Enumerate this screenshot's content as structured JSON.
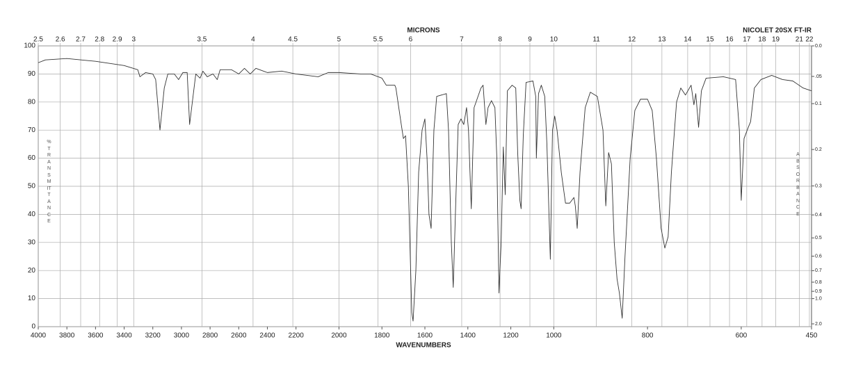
{
  "chart_data": {
    "type": "line",
    "title": "MICRONS",
    "xlabel": "WAVENUMBERS",
    "annotation": "NICOLET 20SX FT-IR",
    "ylabel": "%TRANSMITTANCE",
    "y2label": "ABSORBANCE",
    "color": "#333333",
    "grid": true,
    "xlim": [
      4000,
      450
    ],
    "xscale": "piecewise",
    "xbreaks": [
      4000,
      2200,
      1000,
      450
    ],
    "xticks": [
      4000,
      3800,
      3600,
      3400,
      3200,
      3000,
      2800,
      2600,
      2400,
      2200,
      2000,
      1800,
      1600,
      1400,
      1200,
      1000,
      800,
      600,
      450
    ],
    "x2ticks": [
      2.5,
      2.6,
      2.7,
      2.8,
      2.9,
      3,
      3.5,
      4,
      4.5,
      5,
      5.5,
      6,
      7,
      8,
      9,
      10,
      11,
      12,
      13,
      14,
      15,
      16,
      17,
      18,
      19,
      21,
      22
    ],
    "ylim": [
      0,
      100
    ],
    "yticks": [
      0,
      10,
      20,
      30,
      40,
      50,
      60,
      70,
      80,
      90,
      100
    ],
    "y2ticks": [
      {
        "value": 0.0,
        "label": "0.0"
      },
      {
        "value": 0.05,
        "label": ".05"
      },
      {
        "value": 0.1,
        "label": "0.1"
      },
      {
        "value": 0.2,
        "label": "0.2"
      },
      {
        "value": 0.3,
        "label": "0.3"
      },
      {
        "value": 0.4,
        "label": "0.4"
      },
      {
        "value": 0.5,
        "label": "0.5"
      },
      {
        "value": 0.6,
        "label": "0.6"
      },
      {
        "value": 0.7,
        "label": "0.7"
      },
      {
        "value": 0.8,
        "label": "0.8"
      },
      {
        "value": 0.9,
        "label": "0.9"
      },
      {
        "value": 1.0,
        "label": "1.0"
      },
      {
        "value": 2.0,
        "label": "2.0"
      }
    ],
    "x": [
      4000,
      3950,
      3800,
      3600,
      3400,
      3305,
      3290,
      3250,
      3200,
      3180,
      3150,
      3120,
      3095,
      3050,
      3020,
      2990,
      2960,
      2943,
      2900,
      2870,
      2850,
      2820,
      2780,
      2750,
      2730,
      2650,
      2600,
      2560,
      2520,
      2480,
      2400,
      2300,
      2200,
      2097,
      2050,
      2000,
      1900,
      1852,
      1800,
      1780,
      1740,
      1735,
      1710,
      1700,
      1690,
      1677,
      1661,
      1655,
      1642,
      1629,
      1613,
      1600,
      1590,
      1581,
      1571,
      1558,
      1545,
      1500,
      1490,
      1477,
      1468,
      1458,
      1445,
      1432,
      1419,
      1406,
      1397,
      1384,
      1371,
      1339,
      1329,
      1316,
      1306,
      1290,
      1274,
      1265,
      1255,
      1245,
      1235,
      1226,
      1216,
      1194,
      1177,
      1168,
      1158,
      1152,
      1142,
      1129,
      1097,
      1084,
      1081,
      1071,
      1058,
      1042,
      1032,
      1016,
      1006,
      998,
      993,
      984,
      975,
      966,
      957,
      954,
      950,
      944,
      933,
      922,
      907,
      895,
      889,
      883,
      877,
      871,
      865,
      860,
      854,
      848,
      837,
      827,
      815,
      800,
      790,
      781,
      771,
      763,
      756,
      749,
      738,
      729,
      719,
      707,
      701,
      697,
      691,
      685,
      675,
      638,
      612,
      604,
      600,
      594,
      585,
      580,
      572,
      558,
      535,
      512,
      490,
      468,
      450
    ],
    "values": [
      94,
      95,
      95.5,
      94.5,
      93,
      91.5,
      89,
      90.5,
      90,
      88,
      70,
      85,
      90,
      90,
      88,
      90.5,
      90.5,
      72,
      90,
      88.5,
      91,
      89,
      90,
      88,
      91.5,
      91.5,
      90,
      92,
      90,
      92,
      90.5,
      91,
      90,
      89,
      90.5,
      90.5,
      90,
      90,
      88.5,
      86,
      86,
      85,
      72,
      67,
      68,
      50,
      5,
      2,
      20,
      55,
      70,
      74,
      60,
      40,
      35,
      70,
      82,
      83,
      70,
      30,
      14,
      40,
      72,
      74,
      72,
      78,
      70,
      42,
      78,
      85,
      86,
      72,
      78,
      80.5,
      78,
      60,
      12,
      30,
      64,
      47,
      84,
      86,
      85,
      62,
      45,
      42,
      68,
      87,
      87.5,
      82,
      60,
      83,
      86,
      82,
      65,
      24,
      70,
      75,
      70,
      55,
      44,
      44,
      46,
      43,
      35,
      55,
      78,
      83.5,
      82,
      70,
      43,
      62,
      58,
      30,
      17,
      12,
      3,
      25,
      60,
      77,
      81,
      81,
      77,
      60,
      35,
      28,
      32,
      55,
      80,
      85,
      82.5,
      86,
      79,
      83,
      71,
      84,
      88.5,
      89,
      88,
      70,
      45,
      67,
      71,
      73,
      85,
      88,
      89.5,
      88,
      87.5,
      85,
      84
    ]
  }
}
